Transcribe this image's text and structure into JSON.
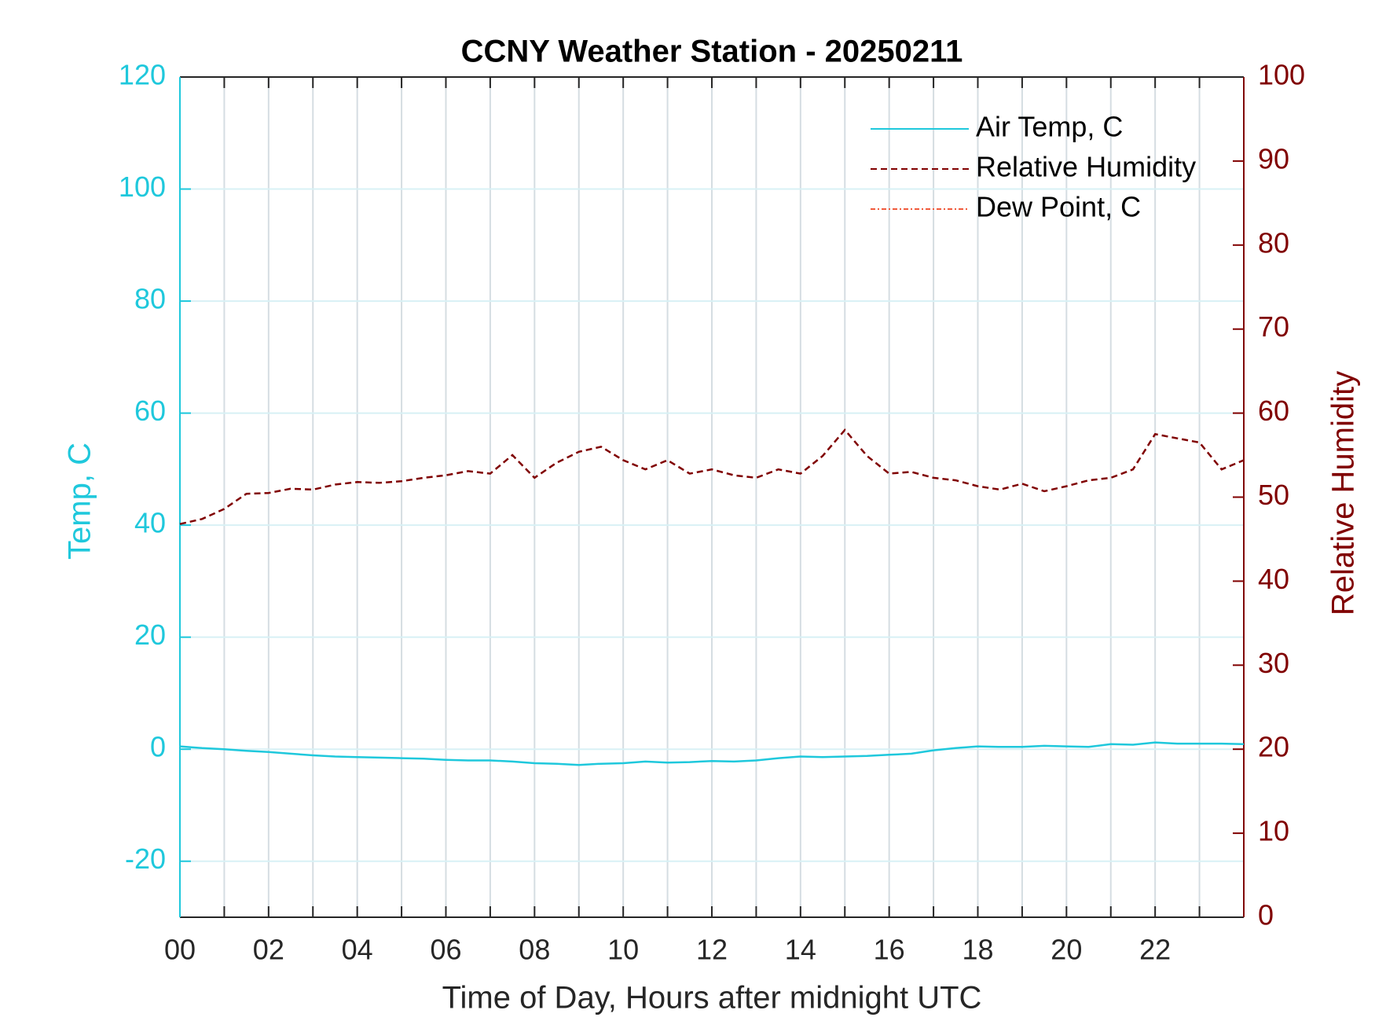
{
  "chart_data": {
    "type": "line",
    "title": "CCNY Weather Station - 20250211",
    "xlabel": "Time of Day, Hours after midnight UTC",
    "ylabel": "Temp, C",
    "y2label": "Relative Humidity",
    "x": [
      0,
      0.5,
      1,
      1.5,
      2,
      2.5,
      3,
      3.5,
      4,
      4.5,
      5,
      5.5,
      6,
      6.5,
      7,
      7.5,
      8,
      8.5,
      9,
      9.5,
      10,
      10.5,
      11,
      11.5,
      12,
      12.5,
      13,
      13.5,
      14,
      14.5,
      15,
      15.5,
      16,
      16.5,
      17,
      17.5,
      18,
      18.5,
      19,
      19.5,
      20,
      20.5,
      21,
      21.5,
      22,
      22.5,
      23,
      23.5,
      24
    ],
    "series": [
      {
        "name": "Air Temp, C",
        "color": "#1fc8dc",
        "style": "solid",
        "values": [
          0.5,
          0.2,
          0,
          -0.3,
          -0.5,
          -0.8,
          -1.1,
          -1.3,
          -1.4,
          -1.5,
          -1.6,
          -1.7,
          -1.9,
          -2.0,
          -2.0,
          -2.2,
          -2.5,
          -2.6,
          -2.8,
          -2.6,
          -2.5,
          -2.2,
          -2.4,
          -2.3,
          -2.1,
          -2.2,
          -2.0,
          -1.6,
          -1.3,
          -1.4,
          -1.3,
          -1.2,
          -1.0,
          -0.8,
          -0.2,
          0.2,
          0.5,
          0.4,
          0.4,
          0.6,
          0.5,
          0.4,
          0.9,
          0.8,
          1.2,
          1.0,
          1.0,
          1.0,
          0.9
        ]
      },
      {
        "name": "Relative Humidity",
        "color": "#800000",
        "style": "dashed",
        "axis": "y2",
        "values": [
          46.8,
          47.4,
          48.6,
          50.4,
          50.5,
          51.0,
          50.9,
          51.5,
          51.8,
          51.7,
          51.9,
          52.3,
          52.6,
          53.1,
          52.8,
          55.0,
          52.3,
          54.1,
          55.4,
          56.0,
          54.4,
          53.3,
          54.4,
          52.8,
          53.3,
          52.6,
          52.3,
          53.3,
          52.8,
          54.9,
          58.0,
          54.9,
          52.8,
          53.0,
          52.3,
          52.0,
          51.3,
          50.9,
          51.6,
          50.7,
          51.3,
          52.0,
          52.3,
          53.3,
          57.5,
          57.0,
          56.5,
          53.3,
          54.4
        ]
      },
      {
        "name": "Dew Point, C",
        "color": "#f05a3c",
        "style": "dashdot",
        "values": [
          null,
          null,
          null,
          null,
          null,
          null,
          null,
          null,
          null,
          null,
          null,
          null,
          null,
          null,
          null,
          null,
          null,
          null,
          null,
          null,
          null,
          null,
          null,
          null,
          null,
          null,
          null,
          null,
          null,
          null,
          null,
          null,
          null,
          null,
          null,
          null,
          null,
          null,
          null,
          null,
          null,
          null,
          null,
          null,
          null,
          null,
          null,
          null,
          null
        ]
      }
    ],
    "xlim": [
      0,
      24
    ],
    "xticks": [
      {
        "value": 0,
        "label": "00"
      },
      {
        "value": 2,
        "label": "02"
      },
      {
        "value": 4,
        "label": "04"
      },
      {
        "value": 6,
        "label": "06"
      },
      {
        "value": 8,
        "label": "08"
      },
      {
        "value": 10,
        "label": "10"
      },
      {
        "value": 12,
        "label": "12"
      },
      {
        "value": 14,
        "label": "14"
      },
      {
        "value": 16,
        "label": "16"
      },
      {
        "value": 18,
        "label": "18"
      },
      {
        "value": 20,
        "label": "20"
      },
      {
        "value": 22,
        "label": "22"
      }
    ],
    "xminorticks": [
      1,
      3,
      5,
      7,
      9,
      11,
      13,
      15,
      17,
      19,
      21,
      23
    ],
    "ylim": [
      -30,
      120
    ],
    "yticks": [
      -20,
      0,
      20,
      40,
      60,
      80,
      100,
      120
    ],
    "y2lim": [
      0,
      100
    ],
    "y2ticks": [
      0,
      10,
      20,
      30,
      40,
      50,
      60,
      70,
      80,
      90,
      100
    ],
    "grid": true,
    "legend": "upper right"
  }
}
